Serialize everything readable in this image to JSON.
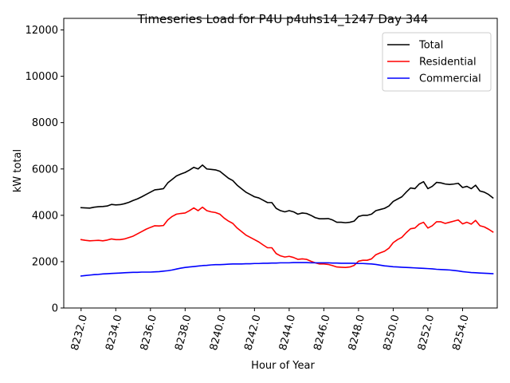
{
  "chart_data": {
    "type": "line",
    "title": "Timeseries Load for P4U p4uhs14_1247  Day 344",
    "xlabel": "Hour of Year",
    "ylabel": "kW total",
    "xlim": [
      8231.0,
      8256.0
    ],
    "ylim": [
      0,
      12500
    ],
    "xticks": [
      8232,
      8234,
      8236,
      8238,
      8240,
      8242,
      8244,
      8246,
      8248,
      8250,
      8252,
      8254
    ],
    "xtick_labels": [
      "8232.0",
      "8234.0",
      "8236.0",
      "8238.0",
      "8240.0",
      "8242.0",
      "8244.0",
      "8246.0",
      "8248.0",
      "8250.0",
      "8252.0",
      "8254.0"
    ],
    "yticks": [
      0,
      2000,
      4000,
      6000,
      8000,
      10000,
      12000
    ],
    "ytick_labels": [
      "0",
      "2000",
      "4000",
      "6000",
      "8000",
      "10000",
      "12000"
    ],
    "legend_position": "top-right",
    "x": [
      8232.0,
      8232.25,
      8232.5,
      8232.75,
      8233.0,
      8233.25,
      8233.5,
      8233.75,
      8234.0,
      8234.25,
      8234.5,
      8234.75,
      8235.0,
      8235.25,
      8235.5,
      8235.75,
      8236.0,
      8236.25,
      8236.5,
      8236.75,
      8237.0,
      8237.25,
      8237.5,
      8237.75,
      8238.0,
      8238.25,
      8238.5,
      8238.75,
      8239.0,
      8239.25,
      8239.5,
      8239.75,
      8240.0,
      8240.25,
      8240.5,
      8240.75,
      8241.0,
      8241.25,
      8241.5,
      8241.75,
      8242.0,
      8242.25,
      8242.5,
      8242.75,
      8243.0,
      8243.25,
      8243.5,
      8243.75,
      8244.0,
      8244.25,
      8244.5,
      8244.75,
      8245.0,
      8245.25,
      8245.5,
      8245.75,
      8246.0,
      8246.25,
      8246.5,
      8246.75,
      8247.0,
      8247.25,
      8247.5,
      8247.75,
      8248.0,
      8248.25,
      8248.5,
      8248.75,
      8249.0,
      8249.25,
      8249.5,
      8249.75,
      8250.0,
      8250.25,
      8250.5,
      8250.75,
      8251.0,
      8251.25,
      8251.5,
      8251.75,
      8252.0,
      8252.25,
      8252.5,
      8252.75,
      8253.0,
      8253.25,
      8253.5,
      8253.75,
      8254.0,
      8254.25,
      8254.5,
      8254.75,
      8255.0,
      8255.25,
      8255.5,
      8255.75
    ],
    "series": [
      {
        "name": "Total",
        "color": "#000000",
        "values": [
          4330,
          4320,
          4310,
          4350,
          4370,
          4380,
          4400,
          4470,
          4450,
          4460,
          4500,
          4560,
          4640,
          4710,
          4800,
          4900,
          5000,
          5100,
          5120,
          5150,
          5400,
          5550,
          5700,
          5780,
          5850,
          5950,
          6070,
          6000,
          6170,
          6000,
          5980,
          5960,
          5900,
          5750,
          5600,
          5500,
          5300,
          5150,
          5000,
          4900,
          4800,
          4750,
          4650,
          4550,
          4550,
          4300,
          4200,
          4150,
          4200,
          4150,
          4050,
          4100,
          4080,
          4000,
          3900,
          3850,
          3850,
          3860,
          3800,
          3700,
          3700,
          3680,
          3700,
          3750,
          3950,
          4000,
          4000,
          4050,
          4200,
          4250,
          4300,
          4400,
          4600,
          4700,
          4800,
          5000,
          5180,
          5150,
          5350,
          5450,
          5150,
          5250,
          5420,
          5400,
          5350,
          5330,
          5350,
          5380,
          5200,
          5250,
          5150,
          5300,
          5050,
          5000,
          4900,
          4750
        ]
      },
      {
        "name": "Residential",
        "color": "#ff0000",
        "values": [
          2950,
          2920,
          2900,
          2910,
          2920,
          2900,
          2930,
          2980,
          2950,
          2950,
          2980,
          3040,
          3100,
          3200,
          3300,
          3400,
          3480,
          3550,
          3540,
          3560,
          3800,
          3950,
          4050,
          4080,
          4100,
          4200,
          4320,
          4200,
          4350,
          4200,
          4150,
          4120,
          4050,
          3880,
          3750,
          3650,
          3450,
          3300,
          3150,
          3050,
          2950,
          2850,
          2720,
          2600,
          2600,
          2350,
          2250,
          2200,
          2230,
          2180,
          2100,
          2120,
          2100,
          2020,
          1950,
          1900,
          1900,
          1880,
          1830,
          1770,
          1760,
          1750,
          1770,
          1840,
          2020,
          2060,
          2060,
          2120,
          2300,
          2380,
          2450,
          2580,
          2820,
          2950,
          3050,
          3250,
          3420,
          3450,
          3620,
          3700,
          3450,
          3550,
          3720,
          3720,
          3650,
          3700,
          3750,
          3800,
          3630,
          3700,
          3620,
          3780,
          3550,
          3500,
          3400,
          3280
        ]
      },
      {
        "name": "Commercial",
        "color": "#0000ff",
        "values": [
          1380,
          1400,
          1420,
          1440,
          1450,
          1470,
          1480,
          1490,
          1500,
          1510,
          1520,
          1530,
          1540,
          1540,
          1550,
          1550,
          1550,
          1560,
          1570,
          1590,
          1610,
          1640,
          1680,
          1720,
          1750,
          1770,
          1790,
          1810,
          1830,
          1840,
          1860,
          1870,
          1870,
          1880,
          1890,
          1900,
          1900,
          1900,
          1910,
          1910,
          1920,
          1920,
          1930,
          1930,
          1940,
          1940,
          1950,
          1950,
          1950,
          1960,
          1960,
          1960,
          1960,
          1950,
          1950,
          1950,
          1950,
          1950,
          1940,
          1940,
          1930,
          1930,
          1930,
          1930,
          1920,
          1920,
          1910,
          1900,
          1880,
          1850,
          1820,
          1800,
          1780,
          1770,
          1760,
          1750,
          1740,
          1730,
          1720,
          1710,
          1700,
          1690,
          1670,
          1660,
          1650,
          1640,
          1620,
          1600,
          1570,
          1550,
          1530,
          1520,
          1510,
          1500,
          1490,
          1480
        ]
      }
    ]
  }
}
